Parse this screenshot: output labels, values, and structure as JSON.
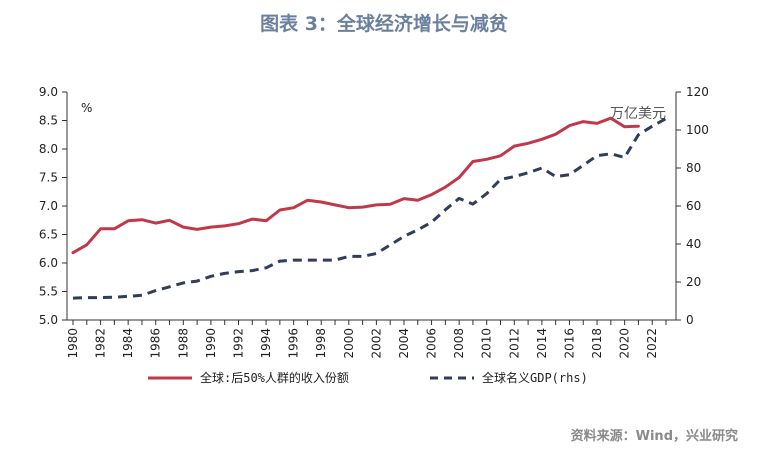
{
  "chart_data": {
    "type": "line",
    "title": "图表 3：全球经济增长与减贫",
    "left_unit": "%",
    "right_unit": "万亿美元",
    "source": "资料来源：Wind，兴业研究",
    "x": [
      1980,
      1981,
      1982,
      1983,
      1984,
      1985,
      1986,
      1987,
      1988,
      1989,
      1990,
      1991,
      1992,
      1993,
      1994,
      1995,
      1996,
      1997,
      1998,
      1999,
      2000,
      2001,
      2002,
      2003,
      2004,
      2005,
      2006,
      2007,
      2008,
      2009,
      2010,
      2011,
      2012,
      2013,
      2014,
      2015,
      2016,
      2017,
      2018,
      2019,
      2020,
      2021,
      2022,
      2023
    ],
    "x_tick_labels": [
      "1980",
      "1982",
      "1984",
      "1986",
      "1988",
      "1990",
      "1992",
      "1994",
      "1996",
      "1998",
      "2000",
      "2002",
      "2004",
      "2006",
      "2008",
      "2010",
      "2012",
      "2014",
      "2016",
      "2018",
      "2020",
      "2022"
    ],
    "ylim_left": [
      5.0,
      9.0
    ],
    "yticks_left": [
      "5.0",
      "5.5",
      "6.0",
      "6.5",
      "7.0",
      "7.5",
      "8.0",
      "8.5",
      "9.0"
    ],
    "ylim_right": [
      0,
      120
    ],
    "yticks_right": [
      "0",
      "20",
      "40",
      "60",
      "80",
      "100",
      "120"
    ],
    "grid": false,
    "legend_position": "bottom",
    "series": [
      {
        "name": "全球:后50%人群的收入份额",
        "axis": "left",
        "color": "#c0394b",
        "style": "solid",
        "values": [
          6.18,
          6.32,
          6.6,
          6.6,
          6.74,
          6.76,
          6.7,
          6.75,
          6.63,
          6.59,
          6.63,
          6.65,
          6.69,
          6.77,
          6.74,
          6.93,
          6.97,
          7.1,
          7.07,
          7.02,
          6.97,
          6.98,
          7.02,
          7.03,
          7.13,
          7.1,
          7.2,
          7.33,
          7.5,
          7.78,
          7.82,
          7.88,
          8.05,
          8.1,
          8.17,
          8.26,
          8.41,
          8.48,
          8.45,
          8.54,
          8.39,
          8.4,
          null,
          null
        ]
      },
      {
        "name": "全球名义GDP(rhs)",
        "axis": "right",
        "color": "#2f3e5a",
        "style": "dashed",
        "values": [
          11.5,
          11.8,
          11.8,
          12.0,
          12.5,
          13.0,
          15.5,
          17.5,
          19.5,
          20.5,
          23.0,
          24.5,
          25.5,
          26.0,
          27.5,
          31.0,
          31.5,
          31.5,
          31.5,
          31.5,
          33.5,
          33.5,
          35.0,
          39.5,
          44.0,
          47.5,
          51.5,
          58.0,
          64.0,
          61.0,
          66.5,
          74.0,
          75.5,
          77.5,
          80.0,
          75.5,
          76.5,
          81.5,
          86.5,
          87.5,
          85.5,
          97.5,
          102.0,
          106.0
        ]
      }
    ]
  }
}
